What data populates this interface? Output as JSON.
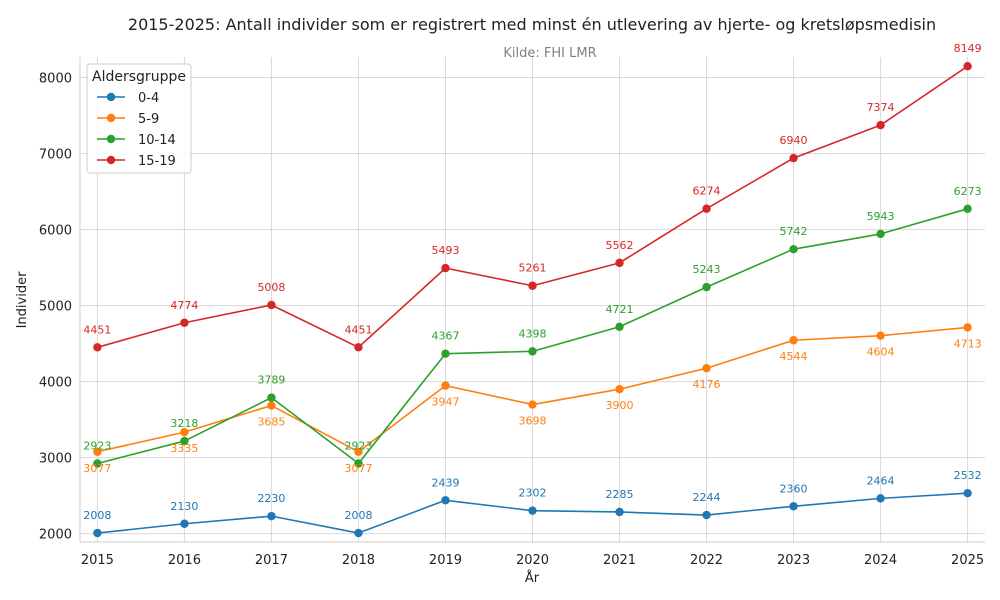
{
  "chart_data": {
    "type": "line",
    "title": "2015-2025: Antall individer som er registrert med minst én utlevering av hjerte- og kretsløpsmedisin",
    "subtitle": "Kilde: FHI LMR",
    "xlabel": "År",
    "ylabel": "Individer",
    "x": [
      2015,
      2016,
      2017,
      2018,
      2019,
      2020,
      2021,
      2022,
      2023,
      2024,
      2025
    ],
    "x_tick_labels": [
      "2015",
      "2016",
      "2017",
      "2018",
      "2019",
      "2020",
      "2021",
      "2022",
      "2023",
      "2024",
      "2025"
    ],
    "xlim": [
      2014.8,
      2025.2
    ],
    "ylim": [
      1890,
      8270
    ],
    "y_ticks": [
      2000,
      3000,
      4000,
      5000,
      6000,
      7000,
      8000
    ],
    "y_tick_labels": [
      "2000",
      "3000",
      "4000",
      "5000",
      "6000",
      "7000",
      "8000"
    ],
    "grid": true,
    "legend": {
      "title": "Aldersgruppe",
      "placement": "top-left"
    },
    "series": [
      {
        "name": "0-4",
        "color": "#1f77b4",
        "label_position": "above",
        "values": [
          2008,
          2130,
          2230,
          2008,
          2439,
          2302,
          2285,
          2244,
          2360,
          2464,
          2532
        ],
        "labels": [
          "2008",
          "2130",
          "2230",
          "2008",
          "2439",
          "2302",
          "2285",
          "2244",
          "2360",
          "2464",
          "2532"
        ]
      },
      {
        "name": "5-9",
        "color": "#ff7f0e",
        "label_position": "below",
        "values": [
          3077,
          3335,
          3685,
          3077,
          3947,
          3698,
          3900,
          4176,
          4544,
          4604,
          4713
        ],
        "labels": [
          "3077",
          "3335",
          "3685",
          "3077",
          "3947",
          "3698",
          "3900",
          "4176",
          "4544",
          "4604",
          "4713"
        ]
      },
      {
        "name": "10-14",
        "color": "#2ca02c",
        "label_position": "above",
        "values": [
          2923,
          3218,
          3789,
          2923,
          4367,
          4398,
          4721,
          5243,
          5742,
          5943,
          6273
        ],
        "labels": [
          "2923",
          "3218",
          "3789",
          "2923",
          "4367",
          "4398",
          "4721",
          "5243",
          "5742",
          "5943",
          "6273"
        ]
      },
      {
        "name": "15-19",
        "color": "#d62728",
        "label_position": "above",
        "values": [
          4451,
          4774,
          5008,
          4451,
          5493,
          5261,
          5562,
          6274,
          6940,
          7374,
          8149
        ],
        "labels": [
          "4451",
          "4774",
          "5008",
          "4451",
          "5493",
          "5261",
          "5562",
          "6274",
          "6940",
          "7374",
          "8149"
        ]
      }
    ]
  }
}
